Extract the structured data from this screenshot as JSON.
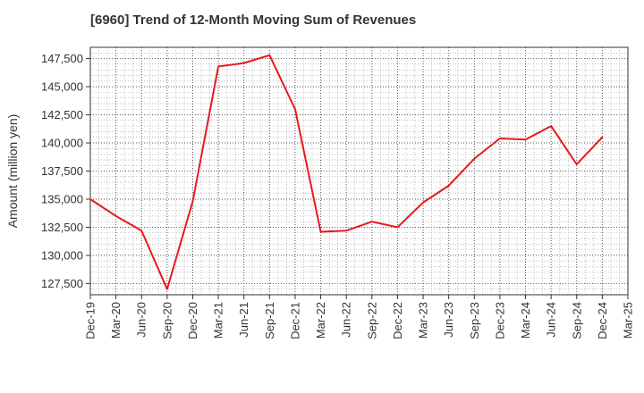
{
  "chart_data": {
    "type": "line",
    "title": "[6960]  Trend of 12-Month Moving Sum of Revenues",
    "xlabel": "",
    "ylabel": "Amount (million yen)",
    "ylim": [
      126500,
      148500
    ],
    "yticks": [
      127500,
      130000,
      132500,
      135000,
      137500,
      140000,
      142500,
      145000,
      147500
    ],
    "ytick_labels": [
      "127,500",
      "130,000",
      "132,500",
      "135,000",
      "137,500",
      "140,000",
      "142,500",
      "145,000",
      "147,500"
    ],
    "categories": [
      "Dec-19",
      "Mar-20",
      "Jun-20",
      "Sep-20",
      "Dec-20",
      "Mar-21",
      "Jun-21",
      "Sep-21",
      "Dec-21",
      "Mar-22",
      "Jun-22",
      "Sep-22",
      "Dec-22",
      "Mar-23",
      "Jun-23",
      "Sep-23",
      "Dec-23",
      "Mar-24",
      "Jun-24",
      "Sep-24",
      "Dec-24",
      "Mar-25"
    ],
    "series": [
      {
        "color": "#e8191e",
        "values": [
          135000,
          133500,
          132200,
          127000,
          134800,
          146800,
          147100,
          147800,
          143000,
          132100,
          132200,
          133000,
          132500,
          134700,
          136200,
          138600,
          140400,
          140300,
          141500,
          138100,
          140500,
          null
        ]
      }
    ],
    "grid": true,
    "grid_style": "dotted",
    "legend": "none"
  }
}
